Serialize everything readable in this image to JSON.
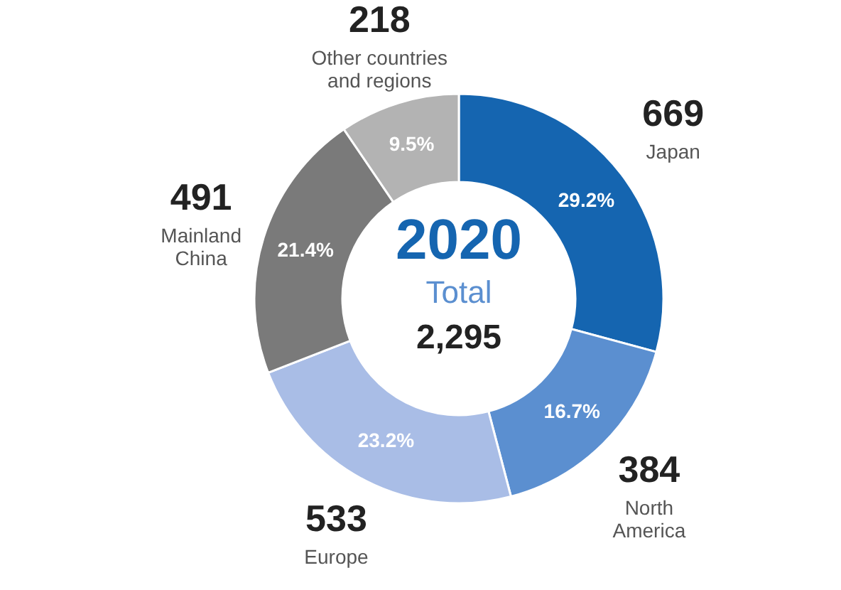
{
  "chart_data": {
    "type": "donut",
    "categories": [
      "Japan",
      "North America",
      "Europe",
      "Mainland China",
      "Other countries and regions"
    ],
    "values": [
      29.2,
      16.7,
      23.2,
      21.4,
      9.5
    ],
    "colors": [
      "#1565b0",
      "#5b8fd0",
      "#a9bde6",
      "#7a7a7a",
      "#b3b3b3"
    ],
    "value_labels": [
      "29.2%",
      "16.7%",
      "23.2%",
      "21.4%",
      "9.5%"
    ],
    "annotations": [
      "2020",
      "Total",
      "2,295",
      {
        "text": "669",
        "x": "Japan"
      },
      {
        "text": "384",
        "x": "North America"
      },
      {
        "text": "533",
        "x": "Europe"
      },
      {
        "text": "491",
        "x": "Mainland China"
      },
      {
        "text": "218",
        "x": "Other countries and regions"
      }
    ]
  }
}
